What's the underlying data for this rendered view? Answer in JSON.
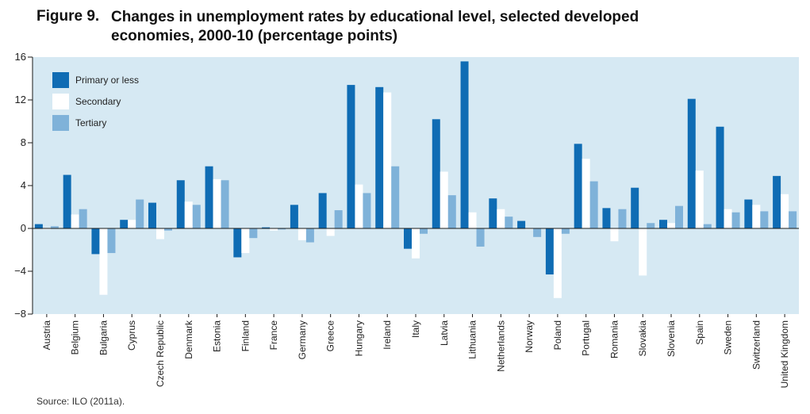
{
  "figure_label": "Figure 9.",
  "title": "Changes in unemployment rates by educational level, selected developed economies, 2000-10 (percentage points)",
  "source": "Source: ILO (2011a).",
  "colors": {
    "background": "#d6e9f3",
    "axis": "#1a1a1a"
  },
  "chart_data": {
    "type": "bar",
    "title": "Changes in unemployment rates by educational level, selected developed economies, 2000-10 (percentage points)",
    "xlabel": "",
    "ylabel": "",
    "ylim": [
      -8,
      16
    ],
    "yticks": [
      -8,
      -4,
      0,
      4,
      8,
      12,
      16
    ],
    "ytick_labels": [
      "−8",
      "−4",
      "0",
      "4",
      "8",
      "12",
      "16"
    ],
    "grid": false,
    "legend_position": "top-left",
    "categories": [
      "Austria",
      "Belgium",
      "Bulgaria",
      "Cyprus",
      "Czech Republic",
      "Denmark",
      "Estonia",
      "Finland",
      "France",
      "Germany",
      "Greece",
      "Hungary",
      "Ireland",
      "Italy",
      "Latvia",
      "Lithuania",
      "Netherlands",
      "Norway",
      "Poland",
      "Portugal",
      "Romania",
      "Slovakia",
      "Slovenia",
      "Spain",
      "Sweden",
      "Switzerland",
      "United Kingdom"
    ],
    "series": [
      {
        "name": "Primary or less",
        "color": "#0f6cb4",
        "values": [
          0.4,
          5.0,
          -2.4,
          0.8,
          2.4,
          4.5,
          5.8,
          -2.7,
          0.1,
          2.2,
          3.3,
          13.4,
          13.2,
          -1.9,
          10.2,
          15.6,
          2.8,
          0.7,
          -4.3,
          7.9,
          1.9,
          3.8,
          0.8,
          12.1,
          9.5,
          2.7,
          4.9
        ]
      },
      {
        "name": "Secondary",
        "color": "#ffffff",
        "values": [
          -0.1,
          1.3,
          -6.2,
          0.8,
          -1.0,
          2.5,
          4.6,
          -2.3,
          -0.2,
          -1.1,
          -0.7,
          4.1,
          12.7,
          -2.8,
          5.3,
          1.5,
          1.8,
          -0.1,
          -6.5,
          6.5,
          -1.2,
          -4.4,
          0.5,
          5.4,
          1.8,
          2.2,
          3.2
        ]
      },
      {
        "name": "Tertiary",
        "color": "#7fb2d9",
        "values": [
          0.2,
          1.8,
          -2.3,
          2.7,
          -0.2,
          2.2,
          4.5,
          -0.9,
          -0.1,
          -1.3,
          1.7,
          3.3,
          5.8,
          -0.5,
          3.1,
          -1.7,
          1.1,
          -0.8,
          -0.5,
          4.4,
          1.8,
          0.5,
          2.1,
          0.4,
          1.5,
          1.6,
          1.6
        ]
      }
    ]
  }
}
